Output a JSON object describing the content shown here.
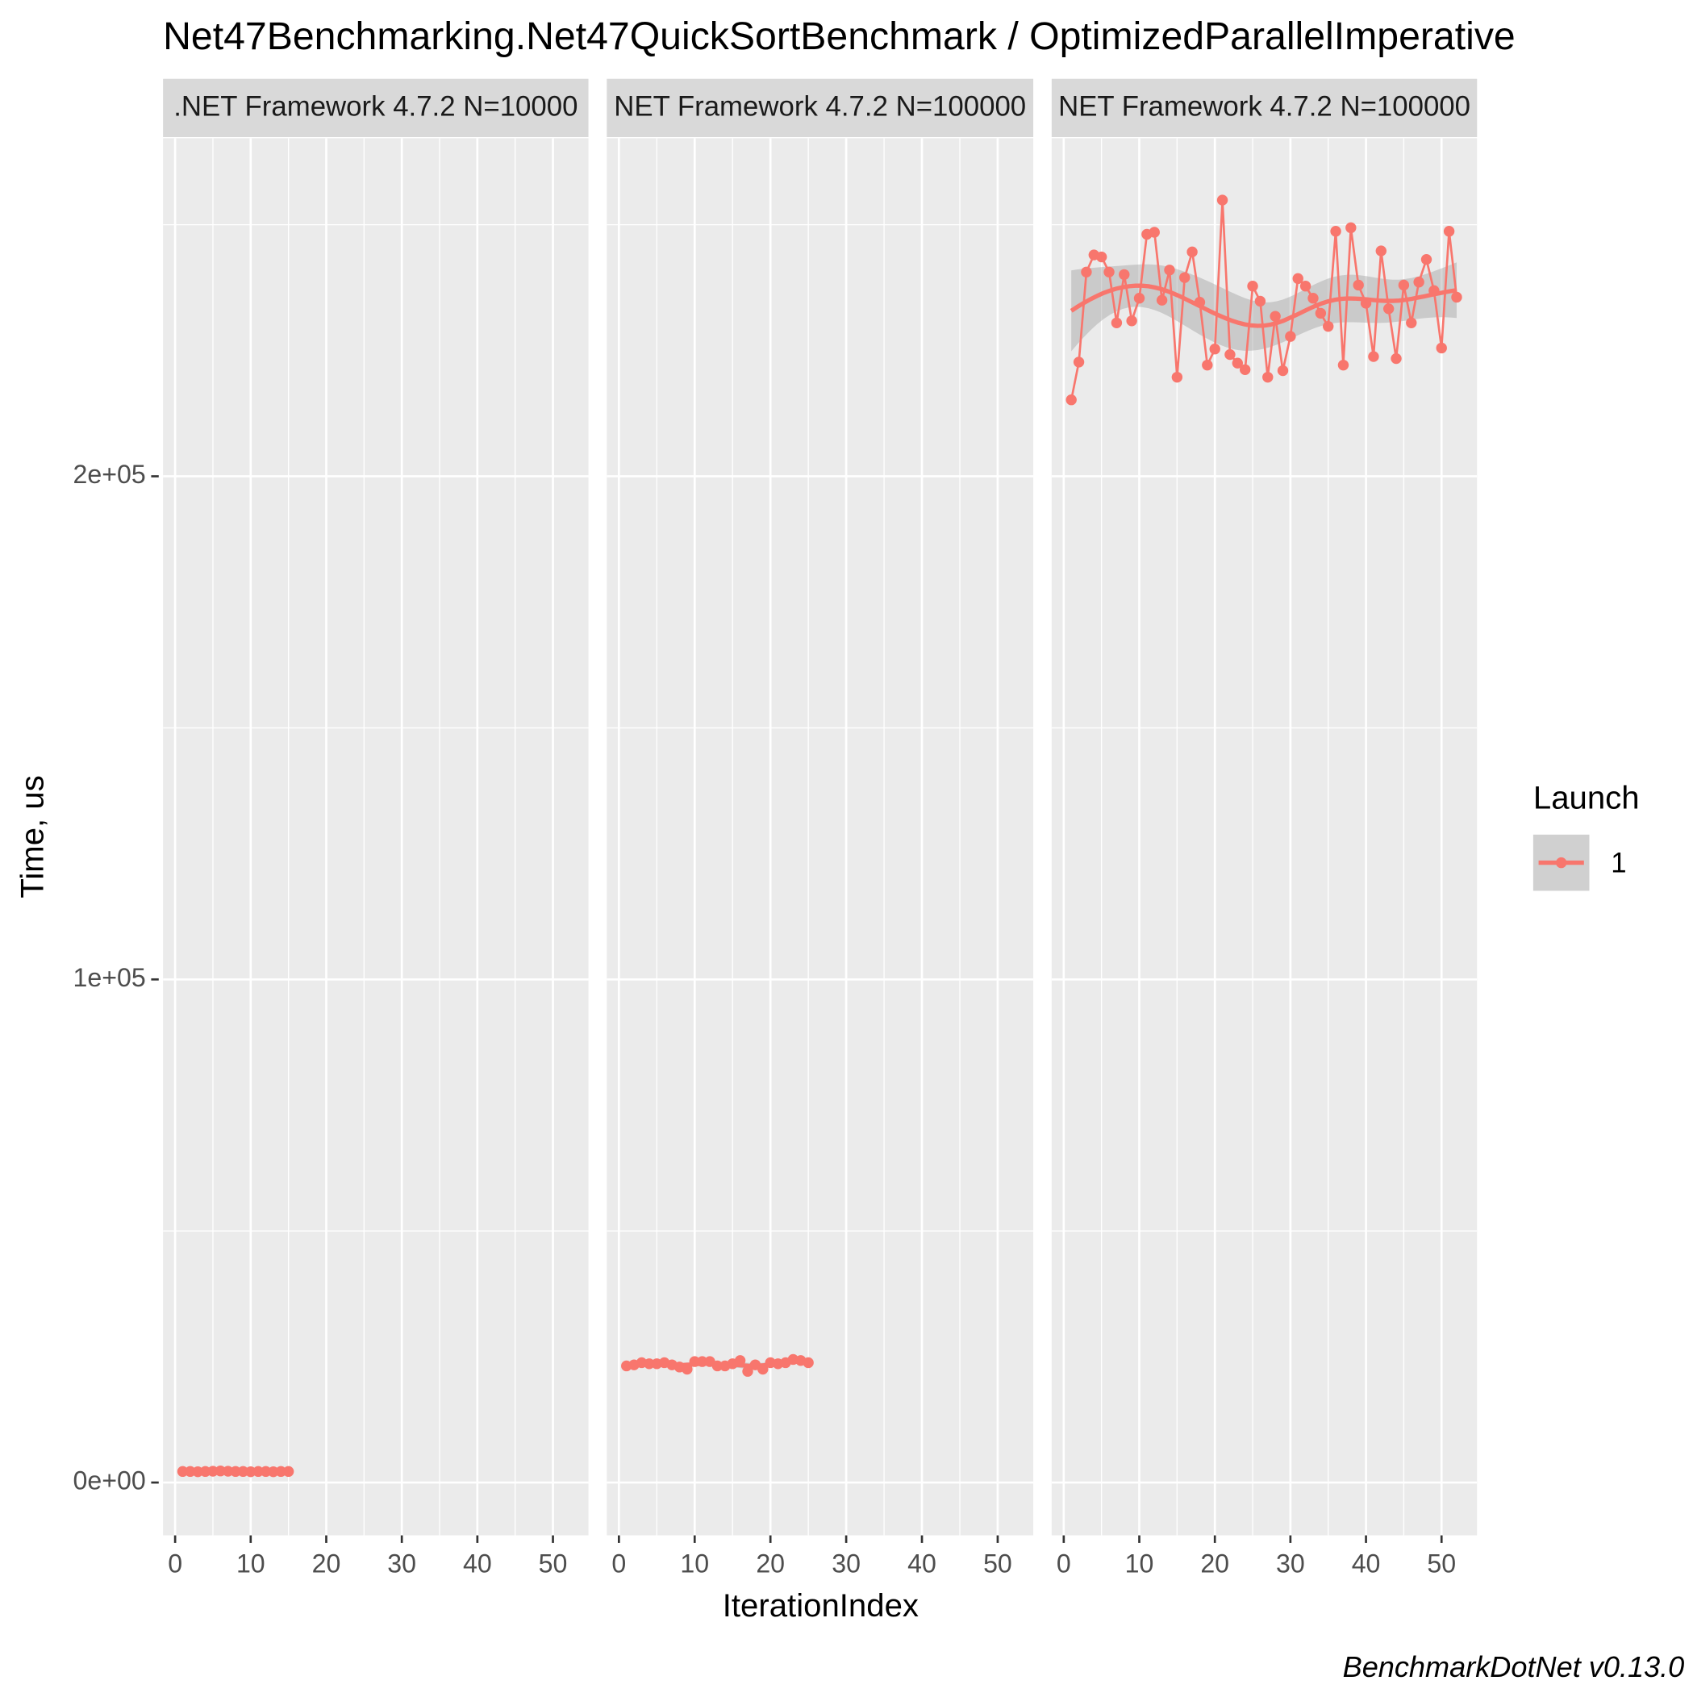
{
  "chart_data": {
    "type": "line",
    "title": "Net47Benchmarking.Net47QuickSortBenchmark / OptimizedParallelImperative",
    "caption": "BenchmarkDotNet v0.13.0",
    "xlabel": "IterationIndex",
    "ylabel": "Time, us",
    "color": "#f8766d",
    "grid": true,
    "smooth": true,
    "legend": {
      "title": "Launch",
      "entries": [
        "1"
      ],
      "position": "right"
    },
    "xlim": [
      -1.6,
      54.7
    ],
    "xticks": [
      0,
      10,
      20,
      30,
      40,
      50
    ],
    "ylim": [
      -10500,
      267200
    ],
    "yticks": [
      {
        "value": 0,
        "label": "0e+00"
      },
      {
        "value": 100000,
        "label": "1e+05"
      },
      {
        "value": 200000,
        "label": "2e+05"
      }
    ],
    "facets": [
      {
        "strip": ".NET Framework 4.7.2 N=10000",
        "x": [
          1,
          2,
          3,
          4,
          5,
          6,
          7,
          8,
          9,
          10,
          11,
          12,
          13,
          14,
          15
        ],
        "values": [
          2200,
          2200,
          2150,
          2200,
          2250,
          2300,
          2250,
          2200,
          2200,
          2150,
          2200,
          2200,
          2150,
          2200,
          2200
        ]
      },
      {
        "strip": "NET Framework 4.7.2 N=100000",
        "x": [
          1,
          2,
          3,
          4,
          5,
          6,
          7,
          8,
          9,
          10,
          11,
          12,
          13,
          14,
          15,
          16,
          17,
          18,
          19,
          20,
          21,
          22,
          23,
          24,
          25
        ],
        "values": [
          23180,
          23390,
          23820,
          23610,
          23610,
          23820,
          23390,
          22960,
          22530,
          24040,
          24040,
          24040,
          23180,
          23180,
          23610,
          24250,
          22100,
          23390,
          22530,
          23820,
          23610,
          23820,
          24460,
          24250,
          23820
        ]
      },
      {
        "strip": "NET Framework 4.7.2 N=100000",
        "x": [
          1,
          2,
          3,
          4,
          5,
          6,
          7,
          8,
          9,
          10,
          11,
          12,
          13,
          14,
          15,
          16,
          17,
          18,
          19,
          20,
          21,
          22,
          23,
          24,
          25,
          26,
          27,
          28,
          29,
          30,
          31,
          32,
          33,
          34,
          35,
          36,
          37,
          38,
          39,
          40,
          41,
          42,
          43,
          44,
          45,
          46,
          47,
          48,
          49,
          50,
          51,
          52
        ],
        "values": [
          215200,
          222700,
          240600,
          244000,
          243600,
          240600,
          230500,
          240100,
          230900,
          235400,
          248100,
          248500,
          235000,
          241000,
          219700,
          239500,
          244600,
          234600,
          222100,
          225300,
          254900,
          224200,
          222500,
          221200,
          237800,
          234800,
          219700,
          231800,
          221000,
          227800,
          239300,
          237800,
          235400,
          232400,
          229800,
          248700,
          222100,
          249400,
          238000,
          234400,
          223800,
          244800,
          233300,
          223400,
          238000,
          230500,
          238600,
          243100,
          236900,
          225500,
          248700,
          235600
        ]
      }
    ]
  }
}
